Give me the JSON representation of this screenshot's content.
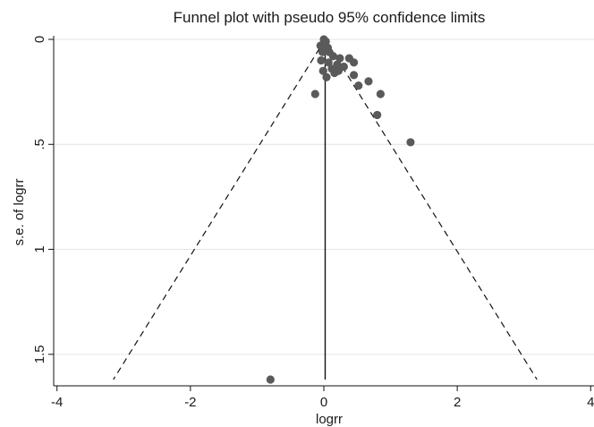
{
  "chart_data": {
    "type": "scatter",
    "title": "Funnel plot with pseudo 95% confidence limits",
    "xlabel": "logrr",
    "ylabel": "s.e. of logrr",
    "xlim": [
      -4.05,
      4.05
    ],
    "ylim": [
      0,
      1.65
    ],
    "y_reversed": true,
    "grid": true,
    "x_ticks": [
      {
        "value": -4,
        "label": "-4"
      },
      {
        "value": -2,
        "label": "-2"
      },
      {
        "value": 0,
        "label": "0"
      },
      {
        "value": 2,
        "label": "2"
      },
      {
        "value": 4,
        "label": "4"
      }
    ],
    "y_ticks": [
      {
        "value": 0,
        "label": "0"
      },
      {
        "value": 0.5,
        "label": ".5"
      },
      {
        "value": 1,
        "label": "1"
      },
      {
        "value": 1.5,
        "label": "1.5"
      }
    ],
    "pooled_estimate": 0.02,
    "confidence_limit_z": 1.96,
    "confidence_limit_max_se": 1.62,
    "points": [
      {
        "x": 0.0,
        "y": 0.0
      },
      {
        "x": 0.03,
        "y": 0.01
      },
      {
        "x": -0.05,
        "y": 0.03
      },
      {
        "x": 0.06,
        "y": 0.04
      },
      {
        "x": 0.08,
        "y": 0.06
      },
      {
        "x": -0.02,
        "y": 0.06
      },
      {
        "x": 0.14,
        "y": 0.08
      },
      {
        "x": 0.24,
        "y": 0.09
      },
      {
        "x": 0.38,
        "y": 0.09
      },
      {
        "x": -0.04,
        "y": 0.1
      },
      {
        "x": 0.07,
        "y": 0.11
      },
      {
        "x": 0.45,
        "y": 0.11
      },
      {
        "x": 0.2,
        "y": 0.12
      },
      {
        "x": 0.3,
        "y": 0.13
      },
      {
        "x": 0.12,
        "y": 0.14
      },
      {
        "x": -0.01,
        "y": 0.15
      },
      {
        "x": 0.22,
        "y": 0.15
      },
      {
        "x": 0.16,
        "y": 0.16
      },
      {
        "x": 0.45,
        "y": 0.17
      },
      {
        "x": 0.04,
        "y": 0.18
      },
      {
        "x": 0.67,
        "y": 0.2
      },
      {
        "x": 0.52,
        "y": 0.22
      },
      {
        "x": -0.13,
        "y": 0.26
      },
      {
        "x": 0.85,
        "y": 0.26
      },
      {
        "x": 0.8,
        "y": 0.36
      },
      {
        "x": 1.3,
        "y": 0.49
      },
      {
        "x": -0.8,
        "y": 1.62
      }
    ],
    "colors": {
      "points": "#5a5a5a",
      "lines": "#111111",
      "grid": "#e4e4e4",
      "axes": "#111111"
    }
  }
}
